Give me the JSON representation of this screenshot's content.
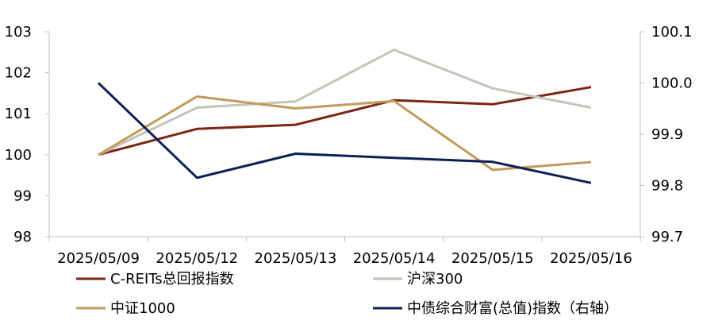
{
  "chart_data": {
    "type": "line",
    "title": "",
    "xlabel": "",
    "ylabel": "",
    "categories": [
      "2025/05/09",
      "2025/05/12",
      "2025/05/13",
      "2025/05/14",
      "2025/05/15",
      "2025/05/16"
    ],
    "y_left": {
      "range": [
        98,
        103
      ],
      "ticks": [
        "98",
        "99",
        "100",
        "101",
        "102",
        "103"
      ]
    },
    "y_right": {
      "range": [
        99.7,
        100.1
      ],
      "ticks": [
        "99.7",
        "99.8",
        "99.9",
        "100.0",
        "100.1"
      ]
    },
    "grid": false,
    "legend_position": "bottom",
    "series": [
      {
        "name": "C-REITs总回报指数",
        "axis": "left",
        "color": "#7b2512",
        "values": [
          100.0,
          100.63,
          100.73,
          101.33,
          101.23,
          101.65
        ]
      },
      {
        "name": "沪深300",
        "axis": "left",
        "color": "#c4c4ba",
        "values": [
          100.0,
          101.15,
          101.3,
          102.56,
          101.62,
          101.15
        ]
      },
      {
        "name": "中证1000",
        "axis": "left",
        "color": "#c49a5c",
        "values": [
          100.0,
          101.42,
          101.13,
          101.31,
          99.63,
          99.82
        ]
      },
      {
        "name": "中债综合财富(总值)指数（右轴）",
        "axis": "right",
        "color": "#0d2055",
        "values": [
          100.0,
          99.815,
          99.862,
          99.854,
          99.846,
          99.805
        ]
      }
    ]
  }
}
